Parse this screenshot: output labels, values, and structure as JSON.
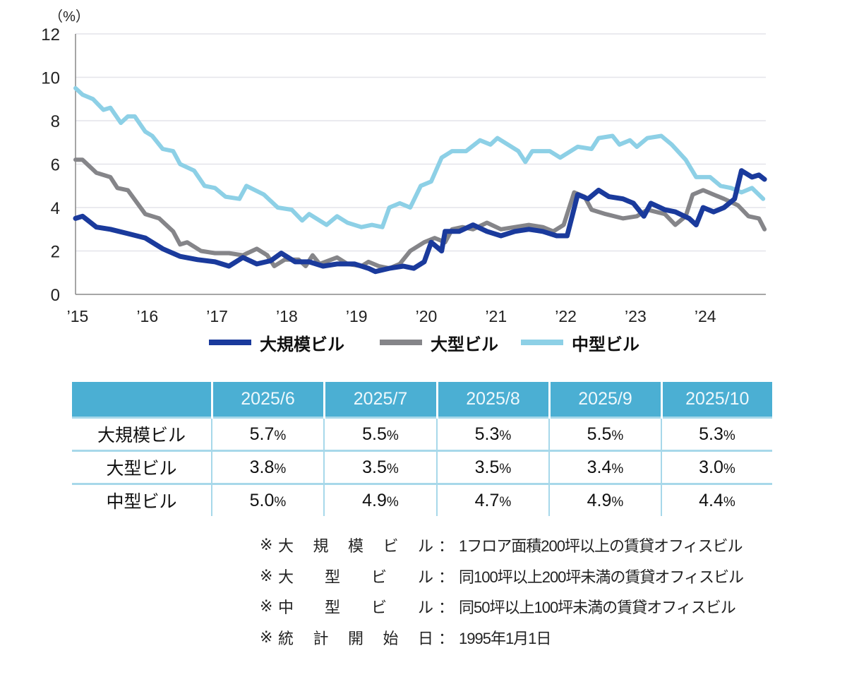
{
  "chart_data": {
    "type": "line",
    "unit_label": "（%）",
    "ylim": [
      0,
      12
    ],
    "yticks": [
      0,
      2,
      4,
      6,
      8,
      10,
      12
    ],
    "xticks": [
      {
        "value": 2015,
        "label": "’15"
      },
      {
        "value": 2016,
        "label": "’16"
      },
      {
        "value": 2017,
        "label": "’17"
      },
      {
        "value": 2018,
        "label": "’18"
      },
      {
        "value": 2019,
        "label": "’19"
      },
      {
        "value": 2020,
        "label": "’20"
      },
      {
        "value": 2021,
        "label": "’21"
      },
      {
        "value": 2022,
        "label": "’22"
      },
      {
        "value": 2023,
        "label": "’23"
      },
      {
        "value": 2024,
        "label": "’24"
      }
    ],
    "xlim": [
      2015,
      2024.9
    ],
    "grid": true,
    "legend_position": "bottom",
    "series": [
      {
        "name": "大規模ビル",
        "color": "#1a3a9c",
        "x": [
          2015.0,
          2015.1,
          2015.3,
          2015.5,
          2015.75,
          2016.0,
          2016.25,
          2016.5,
          2016.75,
          2017.0,
          2017.2,
          2017.4,
          2017.6,
          2017.8,
          2017.95,
          2018.15,
          2018.35,
          2018.55,
          2018.75,
          2019.0,
          2019.2,
          2019.3,
          2019.5,
          2019.7,
          2019.85,
          2020.0,
          2020.1,
          2020.25,
          2020.3,
          2020.5,
          2020.7,
          2020.9,
          2021.1,
          2021.3,
          2021.5,
          2021.7,
          2021.9,
          2022.05,
          2022.2,
          2022.35,
          2022.5,
          2022.65,
          2022.85,
          2023.0,
          2023.15,
          2023.25,
          2023.45,
          2023.6,
          2023.8,
          2023.9,
          2024.0,
          2024.15,
          2024.3,
          2024.45,
          2024.55,
          2024.7,
          2024.8,
          2024.88
        ],
        "y": [
          3.5,
          3.6,
          3.1,
          3.0,
          2.8,
          2.6,
          2.1,
          1.75,
          1.6,
          1.5,
          1.3,
          1.7,
          1.4,
          1.55,
          1.9,
          1.5,
          1.5,
          1.3,
          1.4,
          1.4,
          1.2,
          1.05,
          1.2,
          1.3,
          1.2,
          1.5,
          2.4,
          2.0,
          2.9,
          2.9,
          3.2,
          2.9,
          2.7,
          2.9,
          3.0,
          2.9,
          2.7,
          2.7,
          4.6,
          4.4,
          4.8,
          4.5,
          4.4,
          4.2,
          3.6,
          4.2,
          3.9,
          3.8,
          3.5,
          3.2,
          4.0,
          3.8,
          4.0,
          4.4,
          5.7,
          5.4,
          5.5,
          5.3
        ]
      },
      {
        "name": "大型ビル",
        "color": "#858589",
        "x": [
          2015.0,
          2015.1,
          2015.3,
          2015.5,
          2015.6,
          2015.75,
          2016.0,
          2016.2,
          2016.4,
          2016.5,
          2016.6,
          2016.8,
          2017.0,
          2017.2,
          2017.4,
          2017.6,
          2017.75,
          2017.85,
          2018.0,
          2018.2,
          2018.3,
          2018.4,
          2018.5,
          2018.75,
          2018.9,
          2019.1,
          2019.2,
          2019.35,
          2019.5,
          2019.65,
          2019.8,
          2020.0,
          2020.15,
          2020.3,
          2020.4,
          2020.55,
          2020.7,
          2020.9,
          2021.1,
          2021.3,
          2021.5,
          2021.7,
          2021.85,
          2022.0,
          2022.15,
          2022.3,
          2022.4,
          2022.6,
          2022.85,
          2023.05,
          2023.2,
          2023.45,
          2023.6,
          2023.75,
          2023.85,
          2024.0,
          2024.15,
          2024.3,
          2024.5,
          2024.65,
          2024.8,
          2024.88
        ],
        "y": [
          6.2,
          6.2,
          5.6,
          5.4,
          4.9,
          4.8,
          3.7,
          3.5,
          2.9,
          2.3,
          2.4,
          2.0,
          1.9,
          1.9,
          1.8,
          2.1,
          1.8,
          1.3,
          1.6,
          1.6,
          1.3,
          1.8,
          1.4,
          1.7,
          1.4,
          1.3,
          1.5,
          1.3,
          1.2,
          1.4,
          2.0,
          2.4,
          2.6,
          2.4,
          3.0,
          3.1,
          3.0,
          3.3,
          3.0,
          3.1,
          3.2,
          3.1,
          2.9,
          3.2,
          4.7,
          4.5,
          3.9,
          3.7,
          3.5,
          3.6,
          3.9,
          3.7,
          3.2,
          3.6,
          4.6,
          4.8,
          4.6,
          4.4,
          4.1,
          3.6,
          3.5,
          3.0
        ]
      },
      {
        "name": "中型ビル",
        "color": "#8dd0e6",
        "x": [
          2015.0,
          2015.1,
          2015.25,
          2015.4,
          2015.5,
          2015.65,
          2015.75,
          2015.85,
          2016.0,
          2016.1,
          2016.25,
          2016.4,
          2016.5,
          2016.7,
          2016.85,
          2017.0,
          2017.15,
          2017.35,
          2017.45,
          2017.7,
          2017.9,
          2018.1,
          2018.25,
          2018.35,
          2018.6,
          2018.75,
          2018.9,
          2019.1,
          2019.25,
          2019.4,
          2019.5,
          2019.65,
          2019.8,
          2019.95,
          2020.1,
          2020.25,
          2020.4,
          2020.6,
          2020.8,
          2020.95,
          2021.05,
          2021.2,
          2021.35,
          2021.45,
          2021.55,
          2021.8,
          2021.95,
          2022.2,
          2022.4,
          2022.5,
          2022.7,
          2022.8,
          2022.95,
          2023.05,
          2023.2,
          2023.4,
          2023.55,
          2023.75,
          2023.9,
          2024.1,
          2024.25,
          2024.4,
          2024.55,
          2024.7,
          2024.86
        ],
        "y": [
          9.5,
          9.2,
          9.0,
          8.5,
          8.6,
          7.9,
          8.2,
          8.2,
          7.5,
          7.3,
          6.7,
          6.6,
          6.0,
          5.7,
          5.0,
          4.9,
          4.5,
          4.4,
          5.0,
          4.6,
          4.0,
          3.9,
          3.4,
          3.7,
          3.2,
          3.6,
          3.3,
          3.1,
          3.2,
          3.1,
          4.0,
          4.2,
          4.0,
          5.0,
          5.2,
          6.3,
          6.6,
          6.6,
          7.1,
          6.9,
          7.2,
          6.9,
          6.6,
          6.1,
          6.6,
          6.6,
          6.3,
          6.8,
          6.7,
          7.2,
          7.3,
          6.9,
          7.1,
          6.8,
          7.2,
          7.3,
          6.9,
          6.2,
          5.4,
          5.4,
          5.0,
          4.9,
          4.7,
          4.9,
          4.4
        ]
      }
    ]
  },
  "table": {
    "headers": [
      "",
      "2025/6",
      "2025/7",
      "2025/8",
      "2025/9",
      "2025/10"
    ],
    "pct_sign": "%",
    "rows": [
      {
        "label": "大規模ビル",
        "values": [
          "5.7",
          "5.5",
          "5.3",
          "5.5",
          "5.3"
        ]
      },
      {
        "label": "大型ビル",
        "values": [
          "3.8",
          "3.5",
          "3.5",
          "3.4",
          "3.0"
        ]
      },
      {
        "label": "中型ビル",
        "values": [
          "5.0",
          "4.9",
          "4.7",
          "4.9",
          "4.4"
        ]
      }
    ]
  },
  "notes": [
    {
      "mark": "※",
      "label": "大規模ビル",
      "colon": "：",
      "text": "1フロア面積200坪以上の賃貸オフィスビル"
    },
    {
      "mark": "※",
      "label": "大型ビル",
      "colon": "：",
      "text": "同100坪以上200坪未満の賃貸オフィスビル"
    },
    {
      "mark": "※",
      "label": "中型ビル",
      "colon": "：",
      "text": "同50坪以上100坪未満の賃貸オフィスビル"
    },
    {
      "mark": "※",
      "label": "統計開始日",
      "colon": "：",
      "text": "1995年1月1日"
    }
  ]
}
